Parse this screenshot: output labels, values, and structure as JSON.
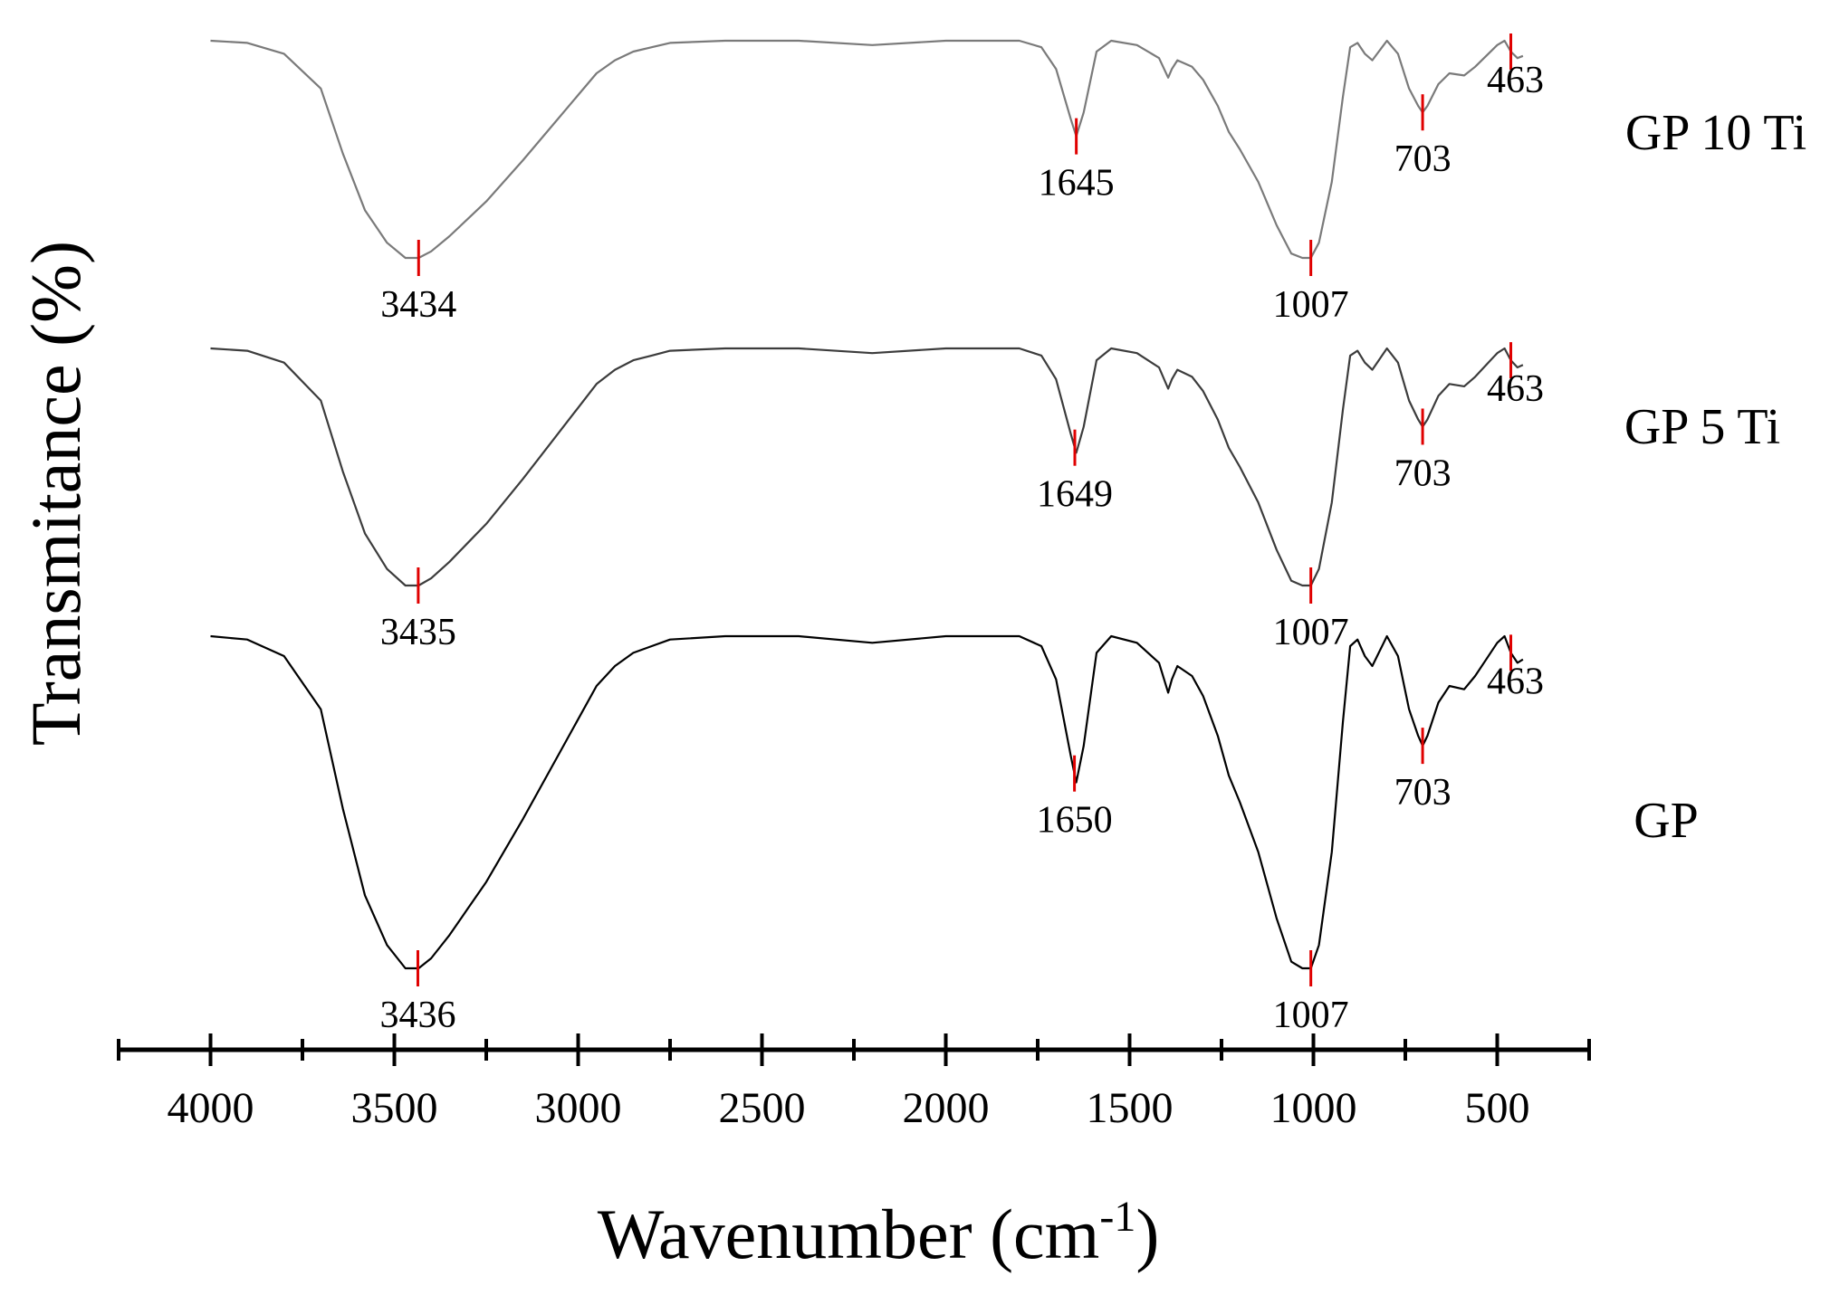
{
  "chart_data": {
    "type": "line",
    "title": "",
    "xlabel": "Wavenumber (cm",
    "xlabel_sup": "-1",
    "xlabel_close": ")",
    "ylabel": "Transmitance (%)",
    "x_range": [
      4250,
      250
    ],
    "xticks": [
      4000,
      3500,
      3000,
      2500,
      2000,
      1500,
      1000,
      500
    ],
    "x_minor_ticks": [
      4250,
      3750,
      3250,
      2750,
      2250,
      1750,
      1250,
      750,
      250
    ],
    "grid": false,
    "legend": "none",
    "peak_color": "#e00000",
    "series": [
      {
        "name": "GP 10 Ti",
        "color": "#7a7a7a",
        "offset": 0,
        "peaks": [
          {
            "wavenumber": 3434,
            "label": "3434"
          },
          {
            "wavenumber": 1645,
            "label": "1645"
          },
          {
            "wavenumber": 1007,
            "label": "1007"
          },
          {
            "wavenumber": 703,
            "label": "703"
          },
          {
            "wavenumber": 463,
            "label": "463"
          }
        ]
      },
      {
        "name": "GP 5 Ti",
        "color": "#3c3c3c",
        "offset": 1,
        "peaks": [
          {
            "wavenumber": 3435,
            "label": "3435"
          },
          {
            "wavenumber": 1649,
            "label": "1649"
          },
          {
            "wavenumber": 1007,
            "label": "1007"
          },
          {
            "wavenumber": 703,
            "label": "703"
          },
          {
            "wavenumber": 463,
            "label": "463"
          }
        ]
      },
      {
        "name": "GP",
        "color": "#000000",
        "offset": 2,
        "peaks": [
          {
            "wavenumber": 3436,
            "label": "3436"
          },
          {
            "wavenumber": 1650,
            "label": "1650"
          },
          {
            "wavenumber": 1007,
            "label": "1007"
          },
          {
            "wavenumber": 703,
            "label": "703"
          },
          {
            "wavenumber": 463,
            "label": "463"
          }
        ]
      }
    ],
    "profile": [
      [
        4000,
        0.0
      ],
      [
        3900,
        0.01
      ],
      [
        3800,
        0.06
      ],
      [
        3700,
        0.22
      ],
      [
        3640,
        0.52
      ],
      [
        3580,
        0.78
      ],
      [
        3520,
        0.93
      ],
      [
        3470,
        1.0
      ],
      [
        3434,
        1.0
      ],
      [
        3400,
        0.97
      ],
      [
        3350,
        0.9
      ],
      [
        3300,
        0.82
      ],
      [
        3250,
        0.74
      ],
      [
        3150,
        0.55
      ],
      [
        3050,
        0.35
      ],
      [
        2950,
        0.15
      ],
      [
        2900,
        0.09
      ],
      [
        2850,
        0.05
      ],
      [
        2800,
        0.03
      ],
      [
        2750,
        0.01
      ],
      [
        2600,
        0.0
      ],
      [
        2400,
        0.0
      ],
      [
        2200,
        0.02
      ],
      [
        2000,
        0.0
      ],
      [
        1800,
        0.0
      ],
      [
        1740,
        0.03
      ],
      [
        1700,
        0.13
      ],
      [
        1660,
        0.36
      ],
      [
        1645,
        0.44
      ],
      [
        1625,
        0.33
      ],
      [
        1590,
        0.05
      ],
      [
        1550,
        0.0
      ],
      [
        1480,
        0.02
      ],
      [
        1420,
        0.08
      ],
      [
        1395,
        0.17
      ],
      [
        1385,
        0.13
      ],
      [
        1370,
        0.09
      ],
      [
        1330,
        0.12
      ],
      [
        1300,
        0.18
      ],
      [
        1260,
        0.3
      ],
      [
        1230,
        0.42
      ],
      [
        1200,
        0.5
      ],
      [
        1150,
        0.65
      ],
      [
        1100,
        0.85
      ],
      [
        1060,
        0.98
      ],
      [
        1030,
        1.0
      ],
      [
        1007,
        1.0
      ],
      [
        985,
        0.93
      ],
      [
        950,
        0.65
      ],
      [
        920,
        0.26
      ],
      [
        900,
        0.03
      ],
      [
        880,
        0.01
      ],
      [
        860,
        0.06
      ],
      [
        840,
        0.09
      ],
      [
        800,
        0.0
      ],
      [
        770,
        0.06
      ],
      [
        740,
        0.22
      ],
      [
        715,
        0.3
      ],
      [
        703,
        0.33
      ],
      [
        690,
        0.3
      ],
      [
        660,
        0.2
      ],
      [
        630,
        0.15
      ],
      [
        590,
        0.16
      ],
      [
        560,
        0.12
      ],
      [
        530,
        0.07
      ],
      [
        500,
        0.02
      ],
      [
        480,
        0.0
      ],
      [
        463,
        0.05
      ],
      [
        445,
        0.08
      ],
      [
        430,
        0.07
      ]
    ]
  }
}
